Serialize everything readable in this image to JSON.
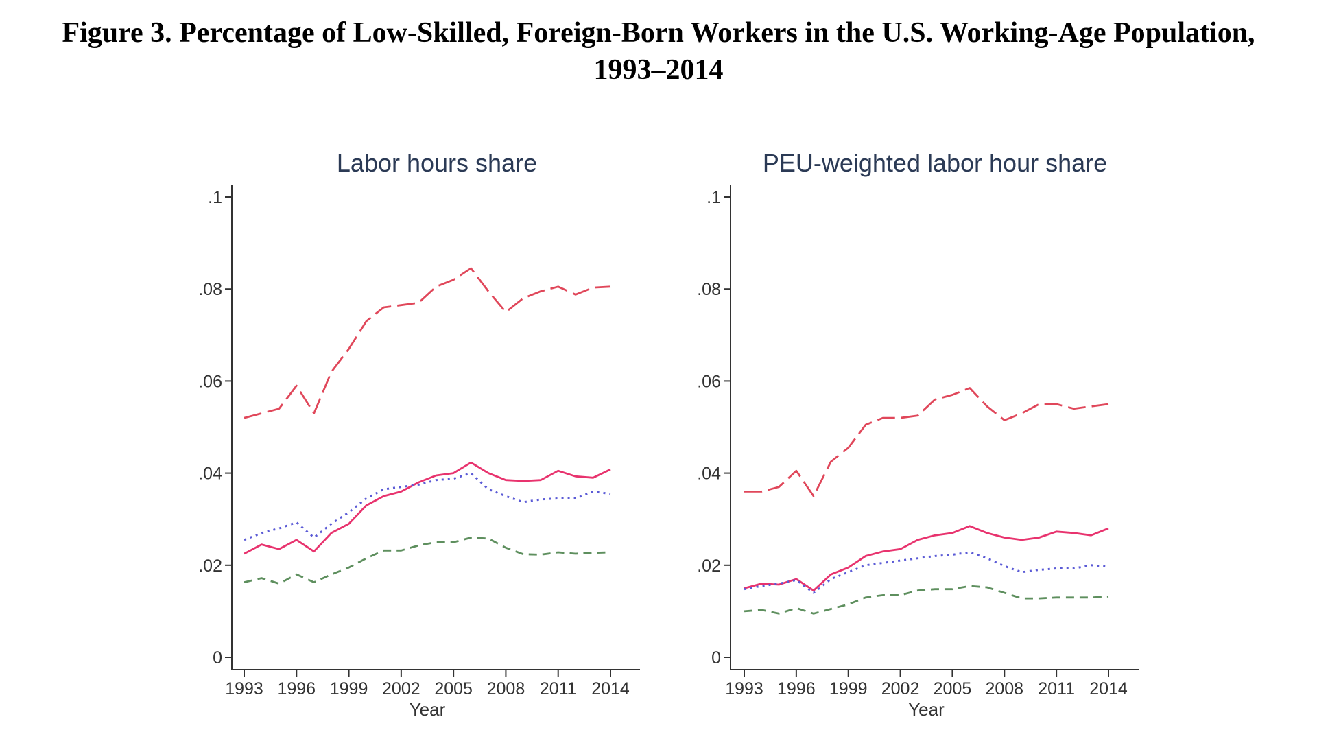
{
  "figure": {
    "title_line1": "Figure 3. Percentage of Low-Skilled, Foreign-Born Workers in the U.S. Working-Age Population,",
    "title_line2": "1993–2014"
  },
  "chart_data": [
    {
      "type": "line",
      "title": "Labor hours share",
      "xlabel": "Year",
      "ylabel": "",
      "xlim": [
        1993,
        2014
      ],
      "ylim": [
        0,
        0.1
      ],
      "x_ticks": [
        1993,
        1996,
        1999,
        2002,
        2005,
        2008,
        2011,
        2014
      ],
      "x_tick_labels": [
        "1993",
        "1996",
        "1999",
        "2002",
        "2005",
        "2008",
        "2011",
        "2014"
      ],
      "y_ticks": [
        0,
        0.02,
        0.04,
        0.06,
        0.08,
        0.1
      ],
      "y_tick_labels": [
        "0",
        ".02",
        ".04",
        ".06",
        ".08",
        ".1"
      ],
      "grid": false,
      "x": [
        1993,
        1994,
        1995,
        1996,
        1997,
        1998,
        1999,
        2000,
        2001,
        2002,
        2003,
        2004,
        2005,
        2006,
        2007,
        2008,
        2009,
        2010,
        2011,
        2012,
        2013,
        2014
      ],
      "series": [
        {
          "name": "long-dash",
          "color": "#e0475a",
          "dash": "long",
          "values": [
            0.052,
            0.053,
            0.054,
            0.059,
            0.053,
            0.062,
            0.067,
            0.073,
            0.076,
            0.0765,
            0.077,
            0.0805,
            0.082,
            0.0845,
            0.0795,
            0.075,
            0.078,
            0.0795,
            0.0805,
            0.0788,
            0.0803,
            0.0805
          ]
        },
        {
          "name": "solid",
          "color": "#e8336e",
          "dash": "solid",
          "values": [
            0.0225,
            0.0245,
            0.0235,
            0.0255,
            0.023,
            0.027,
            0.029,
            0.033,
            0.035,
            0.036,
            0.038,
            0.0395,
            0.04,
            0.0423,
            0.04,
            0.0385,
            0.0383,
            0.0385,
            0.0405,
            0.0393,
            0.039,
            0.0408
          ]
        },
        {
          "name": "dotted",
          "color": "#5b5bd6",
          "dash": "dot",
          "values": [
            0.0255,
            0.027,
            0.028,
            0.0293,
            0.026,
            0.029,
            0.0315,
            0.0345,
            0.0365,
            0.037,
            0.0375,
            0.0385,
            0.0388,
            0.04,
            0.0365,
            0.035,
            0.0337,
            0.0343,
            0.0345,
            0.0345,
            0.036,
            0.0355
          ]
        },
        {
          "name": "short-dash",
          "color": "#5e8f5e",
          "dash": "short",
          "values": [
            0.0163,
            0.0172,
            0.016,
            0.018,
            0.0163,
            0.018,
            0.0195,
            0.0215,
            0.0232,
            0.0232,
            0.0243,
            0.025,
            0.025,
            0.026,
            0.0258,
            0.0238,
            0.0224,
            0.0223,
            0.0228,
            0.0225,
            0.0227,
            0.0228
          ]
        }
      ]
    },
    {
      "type": "line",
      "title": "PEU-weighted labor hour share",
      "xlabel": "Year",
      "ylabel": "",
      "xlim": [
        1993,
        2014
      ],
      "ylim": [
        0,
        0.1
      ],
      "x_ticks": [
        1993,
        1996,
        1999,
        2002,
        2005,
        2008,
        2011,
        2014
      ],
      "x_tick_labels": [
        "1993",
        "1996",
        "1999",
        "2002",
        "2005",
        "2008",
        "2011",
        "2014"
      ],
      "y_ticks": [
        0,
        0.02,
        0.04,
        0.06,
        0.08,
        0.1
      ],
      "y_tick_labels": [
        "0",
        ".02",
        ".04",
        ".06",
        ".08",
        ".1"
      ],
      "grid": false,
      "x": [
        1993,
        1994,
        1995,
        1996,
        1997,
        1998,
        1999,
        2000,
        2001,
        2002,
        2003,
        2004,
        2005,
        2006,
        2007,
        2008,
        2009,
        2010,
        2011,
        2012,
        2013,
        2014
      ],
      "series": [
        {
          "name": "long-dash",
          "color": "#e0475a",
          "dash": "long",
          "values": [
            0.036,
            0.036,
            0.037,
            0.0405,
            0.035,
            0.0425,
            0.0455,
            0.0505,
            0.052,
            0.052,
            0.0525,
            0.056,
            0.057,
            0.0585,
            0.0545,
            0.0515,
            0.053,
            0.055,
            0.055,
            0.054,
            0.0545,
            0.055
          ]
        },
        {
          "name": "solid",
          "color": "#e8336e",
          "dash": "solid",
          "values": [
            0.015,
            0.016,
            0.0158,
            0.017,
            0.0145,
            0.018,
            0.0195,
            0.022,
            0.023,
            0.0235,
            0.0255,
            0.0265,
            0.027,
            0.0285,
            0.027,
            0.026,
            0.0255,
            0.026,
            0.0273,
            0.027,
            0.0265,
            0.028
          ]
        },
        {
          "name": "dotted",
          "color": "#5b5bd6",
          "dash": "dot",
          "values": [
            0.0148,
            0.0155,
            0.016,
            0.0168,
            0.014,
            0.017,
            0.0185,
            0.02,
            0.0205,
            0.021,
            0.0215,
            0.022,
            0.0223,
            0.0228,
            0.0215,
            0.0198,
            0.0185,
            0.019,
            0.0193,
            0.0193,
            0.02,
            0.0197
          ]
        },
        {
          "name": "short-dash",
          "color": "#5e8f5e",
          "dash": "short",
          "values": [
            0.01,
            0.0103,
            0.0095,
            0.0107,
            0.0095,
            0.0105,
            0.0115,
            0.013,
            0.0135,
            0.0135,
            0.0145,
            0.0148,
            0.0148,
            0.0155,
            0.0152,
            0.014,
            0.0128,
            0.0128,
            0.013,
            0.013,
            0.013,
            0.0132
          ]
        }
      ]
    }
  ]
}
